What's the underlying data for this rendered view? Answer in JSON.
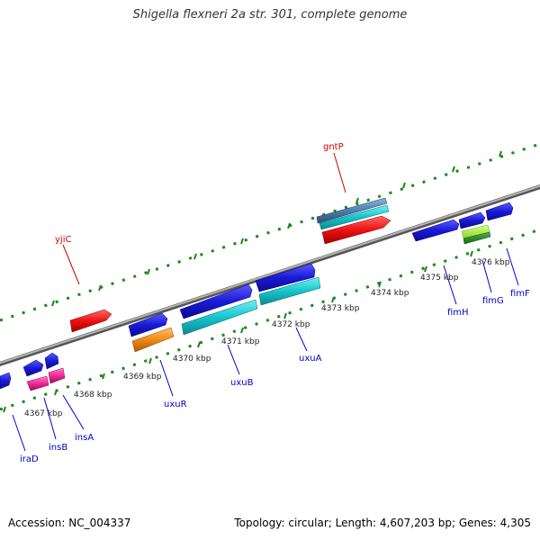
{
  "title": "Shigella flexneri 2a str. 301, complete genome",
  "footer": {
    "accession": "Accession: NC_004337",
    "summary": "Topology: circular; Length: 4,607,203 bp; Genes: 4,305"
  },
  "colors": {
    "backbone": "#888888",
    "tick": "#1a8a1a",
    "label_top": "#cc0000",
    "label_bottom": "#0000cc",
    "blue": "#1a1ad6",
    "cyan": "#17c4cc",
    "red": "#ee1111",
    "orange": "#f08a14",
    "pink": "#ee2a9a",
    "steel": "#4a7fb0",
    "lime": "#a6e83a",
    "darkgreen": "#2a8a2a"
  },
  "kbp_labels": [
    "4367 kbp",
    "4368 kbp",
    "4369 kbp",
    "4370 kbp",
    "4371 kbp",
    "4372 kbp",
    "4373 kbp",
    "4374 kbp",
    "4375 kbp",
    "4376 kbp"
  ],
  "top_genes": [
    {
      "name": "yjiC"
    },
    {
      "name": "gntP"
    }
  ],
  "bottom_genes": [
    {
      "name": "iraD"
    },
    {
      "name": "insB"
    },
    {
      "name": "insA"
    },
    {
      "name": "uxuR"
    },
    {
      "name": "uxuB"
    },
    {
      "name": "uxuA"
    },
    {
      "name": "fimH"
    },
    {
      "name": "fimG"
    },
    {
      "name": "fimF"
    }
  ]
}
